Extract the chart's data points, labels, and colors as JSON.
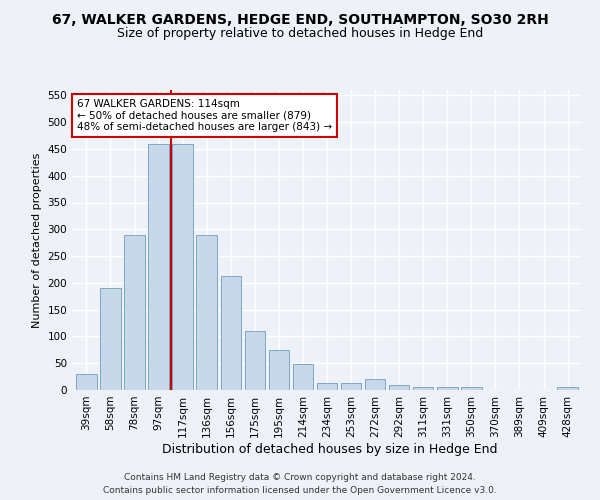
{
  "title1": "67, WALKER GARDENS, HEDGE END, SOUTHAMPTON, SO30 2RH",
  "title2": "Size of property relative to detached houses in Hedge End",
  "xlabel": "Distribution of detached houses by size in Hedge End",
  "ylabel": "Number of detached properties",
  "bar_labels": [
    "39sqm",
    "58sqm",
    "78sqm",
    "97sqm",
    "117sqm",
    "136sqm",
    "156sqm",
    "175sqm",
    "195sqm",
    "214sqm",
    "234sqm",
    "253sqm",
    "272sqm",
    "292sqm",
    "311sqm",
    "331sqm",
    "350sqm",
    "370sqm",
    "389sqm",
    "409sqm",
    "428sqm"
  ],
  "bar_values": [
    30,
    190,
    290,
    460,
    460,
    290,
    213,
    110,
    75,
    48,
    14,
    14,
    20,
    10,
    6,
    6,
    6,
    0,
    0,
    0,
    5
  ],
  "bar_color": "#c8d8e8",
  "bar_edge_color": "#7aa8c8",
  "vline_x_index": 4,
  "vline_color": "#cc0000",
  "annotation_text": "67 WALKER GARDENS: 114sqm\n← 50% of detached houses are smaller (879)\n48% of semi-detached houses are larger (843) →",
  "annotation_box_color": "#ffffff",
  "annotation_box_edge": "#cc0000",
  "ylim": [
    0,
    560
  ],
  "yticks": [
    0,
    50,
    100,
    150,
    200,
    250,
    300,
    350,
    400,
    450,
    500,
    550
  ],
  "footnote": "Contains HM Land Registry data © Crown copyright and database right 2024.\nContains public sector information licensed under the Open Government Licence v3.0.",
  "background_color": "#eef2f8",
  "grid_color": "#ffffff",
  "title1_fontsize": 10,
  "title2_fontsize": 9,
  "xlabel_fontsize": 9,
  "ylabel_fontsize": 8,
  "tick_fontsize": 7.5,
  "footnote_fontsize": 6.5,
  "annotation_fontsize": 7.5
}
